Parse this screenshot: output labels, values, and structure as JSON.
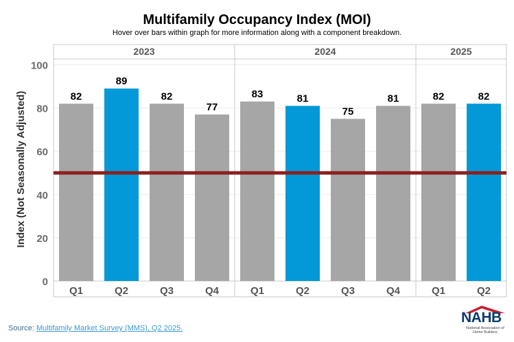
{
  "title": "Multifamily Occupancy Index (MOI)",
  "subtitle": "Hover over bars within graph for more information along with a component breakdown.",
  "source": {
    "prefix": "Source: ",
    "link_text": "Multifamily Market Survey (MMS), Q2 2025."
  },
  "logo": {
    "text": "NAHB",
    "subtext": "National Association of Home Builders"
  },
  "colors": {
    "gray_bar": "#a6a6a6",
    "blue_bar": "#0399d8",
    "reference_line": "#8b2020"
  },
  "chart_data": {
    "type": "bar",
    "title": "Multifamily Occupancy Index (MOI)",
    "ylabel": "Index (Not Seasonally Adjusted)",
    "ylim": [
      0,
      105
    ],
    "yticks": [
      0,
      20,
      40,
      60,
      80,
      100
    ],
    "reference_line": 50,
    "groups": [
      {
        "label": "2023",
        "bars": [
          {
            "category": "Q1",
            "value": 82,
            "highlight": false
          },
          {
            "category": "Q2",
            "value": 89,
            "highlight": true
          },
          {
            "category": "Q3",
            "value": 82,
            "highlight": false
          },
          {
            "category": "Q4",
            "value": 77,
            "highlight": false
          }
        ]
      },
      {
        "label": "2024",
        "bars": [
          {
            "category": "Q1",
            "value": 83,
            "highlight": false
          },
          {
            "category": "Q2",
            "value": 81,
            "highlight": true
          },
          {
            "category": "Q3",
            "value": 75,
            "highlight": false
          },
          {
            "category": "Q4",
            "value": 81,
            "highlight": false
          }
        ]
      },
      {
        "label": "2025",
        "bars": [
          {
            "category": "Q1",
            "value": 82,
            "highlight": false
          },
          {
            "category": "Q2",
            "value": 82,
            "highlight": true
          }
        ]
      }
    ]
  }
}
